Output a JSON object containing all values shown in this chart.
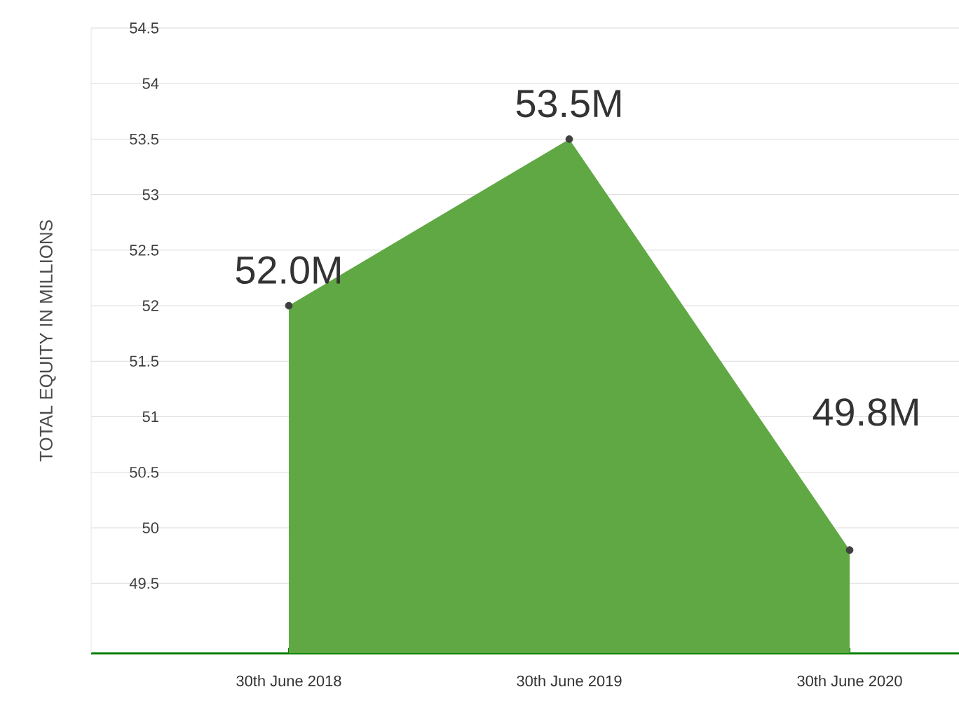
{
  "chart_data": {
    "type": "area",
    "ylabel": "TOTAL EQUITY IN MILLIONS",
    "categories": [
      "30th June 2018",
      "30th June 2019",
      "30th June 2020"
    ],
    "values": [
      52.0,
      53.5,
      49.8
    ],
    "value_labels": [
      "52.0M",
      "53.5M",
      "49.8M"
    ],
    "color": "#5fa843",
    "ylim": [
      48.87,
      54.5
    ],
    "yticks": [
      49.5,
      50,
      50.5,
      51,
      51.5,
      52,
      52.5,
      53,
      53.5,
      54,
      54.5
    ],
    "grid": "y",
    "marker": "circle"
  }
}
